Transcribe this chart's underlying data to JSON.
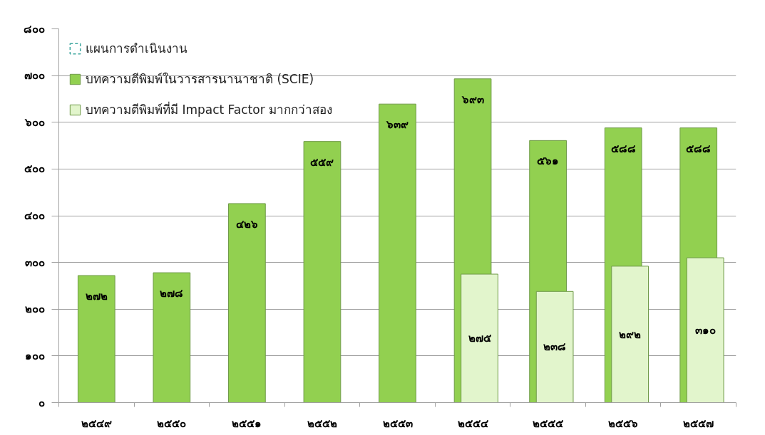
{
  "chart_data": {
    "type": "bar",
    "categories": [
      "๒๕๔๙",
      "๒๕๕๐",
      "๒๕๕๑",
      "๒๕๕๒",
      "๒๕๕๓",
      "๒๕๕๔",
      "๒๕๕๕",
      "๒๕๕๖",
      "๒๕๕๗"
    ],
    "series": [
      {
        "name": "แผนการดำเนินงาน",
        "color": "#40a8a0",
        "line_style": "dashed",
        "values": [
          null,
          null,
          null,
          null,
          null,
          null,
          null,
          null,
          null
        ]
      },
      {
        "name": "บทความตีพิมพ์ในวารสารนานาชาติ (SCIE)",
        "color": "#92d050",
        "values": [
          272,
          278,
          426,
          559,
          639,
          693,
          561,
          588,
          588
        ],
        "value_labels": [
          "๒๗๒",
          "๒๗๘",
          "๔๒๖",
          "๕๕๙",
          "๖๓๙",
          "๖๙๓",
          "๕๖๑",
          "๕๘๘",
          "๕๘๘"
        ]
      },
      {
        "name": "บทความตีพิมพ์ที่มี Impact Factor มากกว่าสอง",
        "color": "#e2f5cc",
        "values": [
          null,
          null,
          null,
          null,
          null,
          275,
          238,
          292,
          310
        ],
        "value_labels": [
          null,
          null,
          null,
          null,
          null,
          "๒๗๕",
          "๒๓๘",
          "๒๙๒",
          "๓๑๐"
        ]
      }
    ],
    "ylim": [
      0,
      800
    ],
    "yticks": [
      {
        "value": 0,
        "label": "๐"
      },
      {
        "value": 100,
        "label": "๑๐๐"
      },
      {
        "value": 200,
        "label": "๒๐๐"
      },
      {
        "value": 300,
        "label": "๓๐๐"
      },
      {
        "value": 400,
        "label": "๔๐๐"
      },
      {
        "value": 500,
        "label": "๕๐๐"
      },
      {
        "value": 600,
        "label": "๖๐๐"
      },
      {
        "value": 700,
        "label": "๗๐๐"
      },
      {
        "value": 800,
        "label": "๘๐๐"
      }
    ],
    "grid": "y",
    "legend": "top left"
  }
}
